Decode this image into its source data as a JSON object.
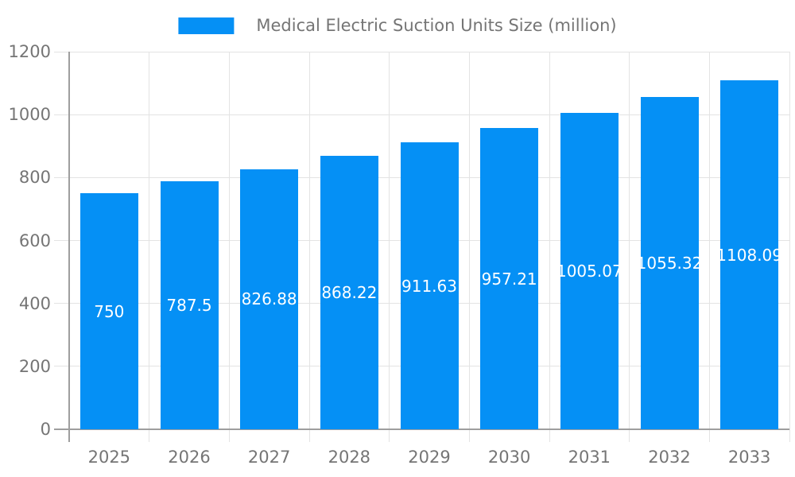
{
  "chart_data": {
    "type": "bar",
    "title": "Medical Electric Suction Units Size (million)",
    "categories": [
      "2025",
      "2026",
      "2027",
      "2028",
      "2029",
      "2030",
      "2031",
      "2032",
      "2033"
    ],
    "series": [
      {
        "name": "Medical Electric Suction Units Size (million)",
        "values": [
          750,
          787.5,
          826.88,
          868.22,
          911.63,
          957.21,
          1005.07,
          1055.32,
          1108.09
        ]
      }
    ],
    "value_labels": [
      "750",
      "787.5",
      "826.88",
      "868.22",
      "911.63",
      "957.21",
      "1005.07",
      "1055.32",
      "1108.09"
    ],
    "xlabel": "",
    "ylabel": "",
    "ylim": [
      0,
      1200
    ],
    "yticks": [
      0,
      200,
      400,
      600,
      800,
      1000,
      1200
    ],
    "grid": true,
    "legend_position": "top",
    "colors": {
      "bar": "#0590f5",
      "value_text": "#ffffff",
      "axis_text": "#757575",
      "gridline": "#e3e3e3",
      "axis_line": "#9e9e9e"
    }
  }
}
